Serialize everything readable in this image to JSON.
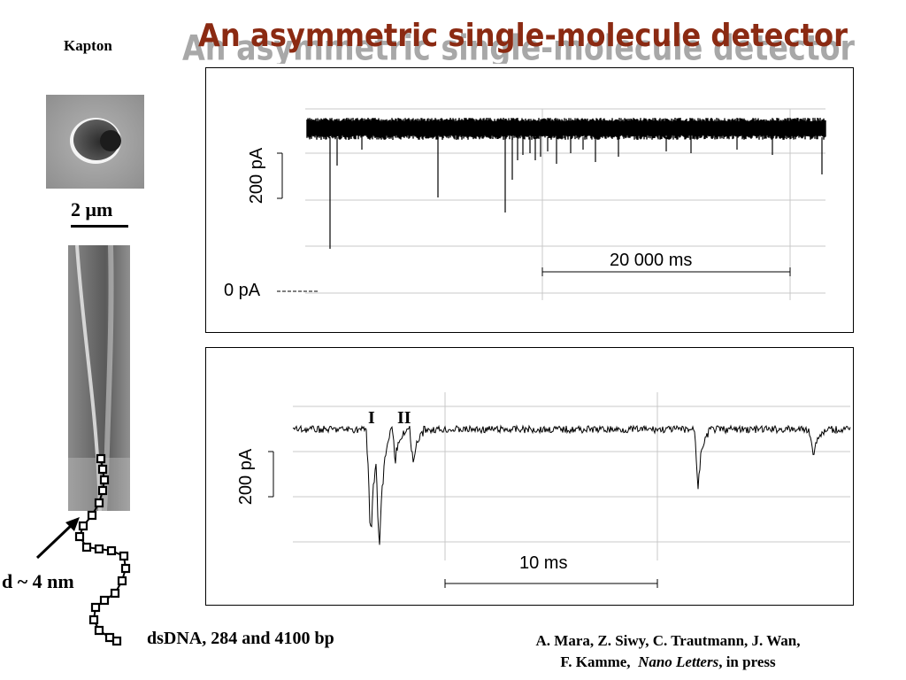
{
  "title": "An asymmetric single-molecule detector",
  "kapton_label": "Kapton",
  "scale_label": "2 μm",
  "pore_label": "d ~ 4 nm",
  "dna_label": "dsDNA, 284 and 4100 bp",
  "top_panel": {
    "y_scale_label": "200 pA",
    "x_scale_label": "20 000 ms",
    "zero_label": "0 pA"
  },
  "bottom_panel": {
    "y_scale_label": "200 pA",
    "x_scale_label": "10 ms",
    "event_labels": [
      "I",
      "II"
    ]
  },
  "citation": {
    "authors_line1": "A. Mara, Z. Siwy, C. Trautmann, J. Wan,",
    "authors_line2": "F. Kamme,",
    "journal": "Nano Letters",
    "status": ", in press"
  },
  "colors": {
    "title_fill": "#8b2a12",
    "title_shadow": "#9a9a9a",
    "trace": "#000000",
    "grid": "#c8c8c8"
  }
}
